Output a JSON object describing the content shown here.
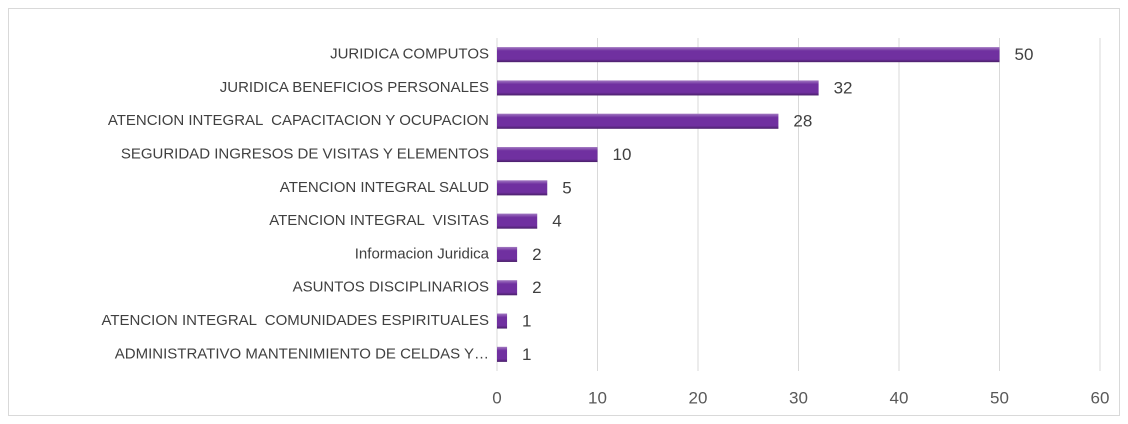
{
  "chart_data": {
    "type": "bar",
    "orientation": "horizontal",
    "categories": [
      "JURIDICA COMPUTOS",
      "JURIDICA BENEFICIOS PERSONALES",
      "ATENCION INTEGRAL  CAPACITACION Y OCUPACION",
      "SEGURIDAD INGRESOS DE VISITAS Y ELEMENTOS",
      "ATENCION INTEGRAL SALUD",
      "ATENCION INTEGRAL  VISITAS",
      "Informacion Juridica",
      "ASUNTOS DISCIPLINARIOS",
      "ATENCION INTEGRAL  COMUNIDADES ESPIRITUALES",
      "ADMINISTRATIVO MANTENIMIENTO DE CELDAS Y…"
    ],
    "values": [
      50,
      32,
      28,
      10,
      5,
      4,
      2,
      2,
      1,
      1
    ],
    "color": "#7030a0",
    "xlim": [
      0,
      60
    ],
    "xticks": [
      0,
      10,
      20,
      30,
      40,
      50,
      60
    ],
    "grid": true
  }
}
